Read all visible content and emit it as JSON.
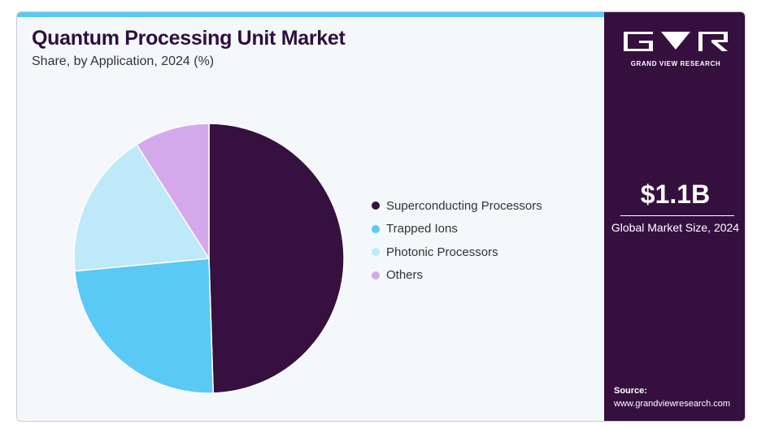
{
  "header": {
    "title": "Quantum Processing Unit Market",
    "subtitle": "Share, by Application, 2024 (%)"
  },
  "chart_data": {
    "type": "pie",
    "categories": [
      "Superconducting Processors",
      "Trapped Ions",
      "Photonic Processors",
      "Others"
    ],
    "values": [
      49.5,
      24,
      17.5,
      9
    ],
    "colors": [
      "#36113f",
      "#5bc9f5",
      "#bde9f9",
      "#d3a9eb"
    ],
    "legend_position": "right"
  },
  "sidebar": {
    "logo_text": "GRAND VIEW RESEARCH",
    "market_size": "$1.1B",
    "market_caption": "Global Market Size, 2024",
    "source_label": "Source:",
    "source_url": "www.grandviewresearch.com"
  },
  "colors": {
    "sidebar_bg": "#35103f",
    "accent": "#5bc9f5",
    "panel_bg": "#f4f8fb"
  }
}
